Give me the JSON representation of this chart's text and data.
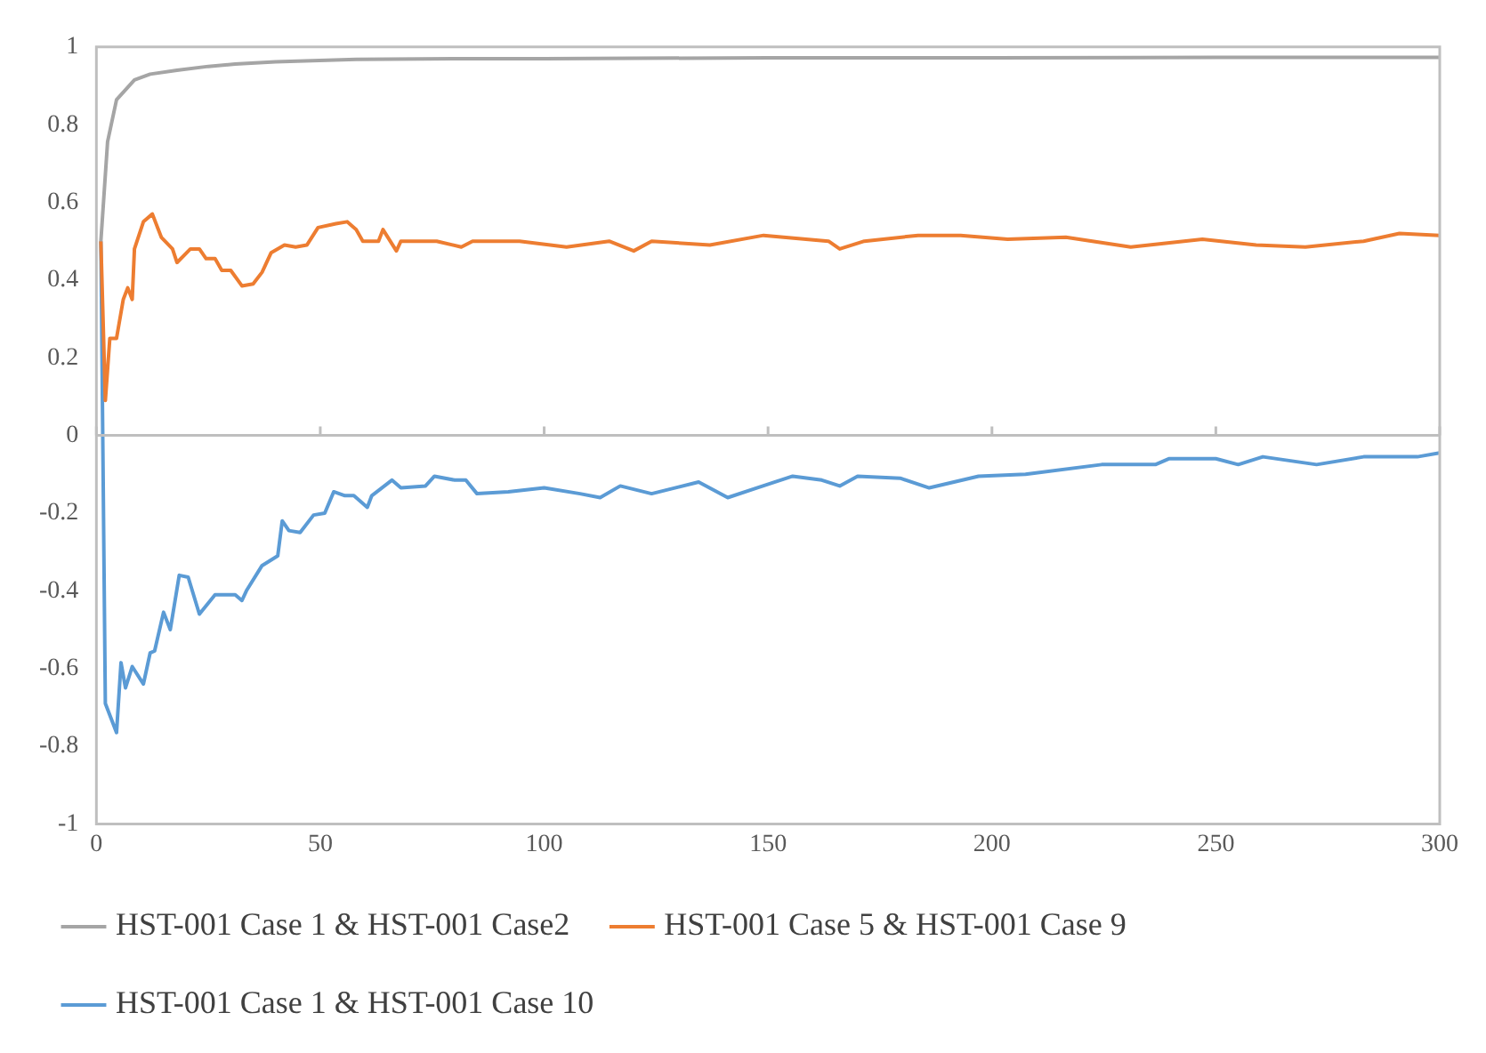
{
  "chart_data": {
    "type": "line",
    "xlim": [
      0,
      300
    ],
    "xticks": [
      0,
      50,
      100,
      150,
      200,
      250,
      300
    ],
    "ylim": [
      -1,
      1
    ],
    "yticks": [
      -1,
      -0.8,
      -0.6,
      -0.4,
      -0.2,
      0,
      0.2,
      0.4,
      0.6,
      0.8,
      1
    ],
    "legend": "bottom",
    "marker": "none",
    "line_style": "solid",
    "series": [
      {
        "name": "HST-001 Case 1 & HST-001 Case2",
        "color": "#a5a5a5",
        "x": [
          1,
          2.5,
          4.5,
          8.5,
          12,
          18,
          25,
          31,
          40,
          58,
          80,
          100,
          150,
          200,
          250,
          300
        ],
        "values": [
          0.5,
          0.756,
          0.864,
          0.915,
          0.93,
          0.94,
          0.95,
          0.956,
          0.962,
          0.968,
          0.97,
          0.97,
          0.972,
          0.972,
          0.973,
          0.973
        ]
      },
      {
        "name": "HST-001 Case 5 & HST-001 Case 9",
        "color": "#ed7d31",
        "x": [
          1,
          2,
          3,
          4.5,
          6,
          7,
          8,
          8.5,
          10.5,
          12.5,
          14.5,
          17,
          18,
          21,
          23,
          24.5,
          26.5,
          28,
          30,
          32.5,
          35,
          37,
          39,
          42,
          44.5,
          47,
          49.5,
          53.5,
          56,
          58,
          59.5,
          63,
          64,
          67,
          68,
          76,
          81.5,
          84,
          94.5,
          105,
          114.5,
          120,
          124,
          137,
          149,
          163.5,
          166,
          171.5,
          183.5,
          193,
          203.5,
          216.5,
          231,
          247,
          259,
          270,
          283,
          291,
          300
        ],
        "values": [
          0.5,
          0.09,
          0.25,
          0.25,
          0.35,
          0.38,
          0.35,
          0.48,
          0.55,
          0.57,
          0.51,
          0.48,
          0.445,
          0.48,
          0.48,
          0.455,
          0.455,
          0.425,
          0.425,
          0.385,
          0.39,
          0.42,
          0.47,
          0.49,
          0.485,
          0.49,
          0.535,
          0.545,
          0.55,
          0.53,
          0.5,
          0.5,
          0.53,
          0.475,
          0.5,
          0.5,
          0.485,
          0.5,
          0.5,
          0.485,
          0.5,
          0.475,
          0.5,
          0.49,
          0.515,
          0.5,
          0.48,
          0.5,
          0.515,
          0.515,
          0.505,
          0.51,
          0.485,
          0.505,
          0.49,
          0.485,
          0.5,
          0.52,
          0.515
        ]
      },
      {
        "name": "HST-001 Case 1 & HST-001 Case 10",
        "color": "#5b9bd5",
        "x": [
          1,
          2,
          4.5,
          5.5,
          6.5,
          8,
          10.5,
          12,
          13,
          15,
          16.5,
          18.5,
          20.5,
          23,
          26.5,
          31,
          32.5,
          33.5,
          37,
          40.5,
          41.5,
          43,
          45.5,
          48.5,
          51,
          53,
          55.5,
          57.5,
          60.5,
          61.5,
          66,
          68,
          73.5,
          75.5,
          80,
          82.5,
          85,
          92,
          100,
          108,
          112.5,
          117,
          124,
          134.5,
          141,
          147.5,
          155.5,
          162,
          166,
          170,
          179.5,
          186,
          197,
          207.5,
          224.5,
          236.5,
          239.5,
          250,
          255,
          260.5,
          272.5,
          283,
          295,
          300
        ],
        "values": [
          0.5,
          -0.69,
          -0.765,
          -0.585,
          -0.65,
          -0.595,
          -0.64,
          -0.56,
          -0.555,
          -0.455,
          -0.5,
          -0.36,
          -0.365,
          -0.46,
          -0.41,
          -0.41,
          -0.425,
          -0.4,
          -0.335,
          -0.31,
          -0.22,
          -0.245,
          -0.25,
          -0.205,
          -0.2,
          -0.145,
          -0.155,
          -0.155,
          -0.185,
          -0.155,
          -0.115,
          -0.135,
          -0.13,
          -0.105,
          -0.115,
          -0.115,
          -0.15,
          -0.145,
          -0.135,
          -0.15,
          -0.16,
          -0.13,
          -0.15,
          -0.12,
          -0.16,
          -0.135,
          -0.105,
          -0.115,
          -0.13,
          -0.105,
          -0.11,
          -0.135,
          -0.105,
          -0.1,
          -0.075,
          -0.075,
          -0.06,
          -0.06,
          -0.075,
          -0.055,
          -0.075,
          -0.055,
          -0.055,
          -0.045
        ]
      }
    ]
  }
}
